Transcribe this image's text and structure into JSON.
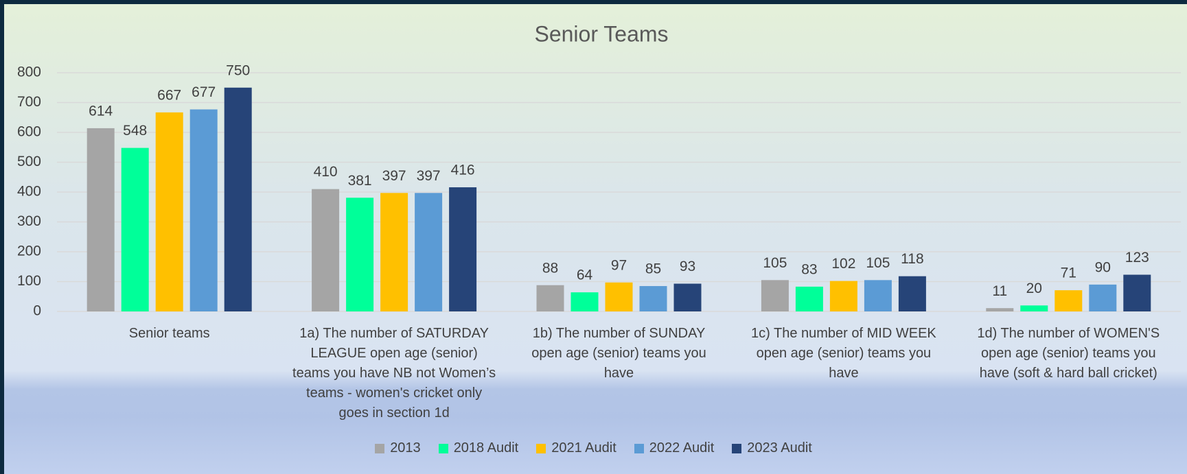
{
  "chart_data": {
    "type": "bar",
    "title": "Senior Teams",
    "categories": [
      "Senior teams",
      "1a) The number of SATURDAY LEAGUE open age (senior) teams you have NB not Women’s teams - women's cricket only goes in section 1d",
      "1b) The number of SUNDAY open age (senior) teams you have",
      "1c) The number of MID WEEK open age (senior) teams you have",
      "1d) The number of WOMEN'S open age (senior) teams you have (soft & hard ball cricket)"
    ],
    "series": [
      {
        "name": "2013",
        "color": "#a5a5a5",
        "values": [
          614,
          410,
          88,
          105,
          11
        ]
      },
      {
        "name": "2018 Audit",
        "color": "#00ff99",
        "values": [
          548,
          381,
          64,
          83,
          20
        ]
      },
      {
        "name": "2021 Audit",
        "color": "#ffc000",
        "values": [
          667,
          397,
          97,
          102,
          71
        ]
      },
      {
        "name": "2022 Audit",
        "color": "#5b9bd5",
        "values": [
          677,
          397,
          85,
          105,
          90
        ]
      },
      {
        "name": "2023 Audit",
        "color": "#264478",
        "values": [
          750,
          416,
          93,
          118,
          123
        ]
      }
    ],
    "ylim": [
      0,
      800
    ],
    "yticks": [
      0,
      100,
      200,
      300,
      400,
      500,
      600,
      700,
      800
    ],
    "grid": true,
    "legend": "bottom"
  }
}
